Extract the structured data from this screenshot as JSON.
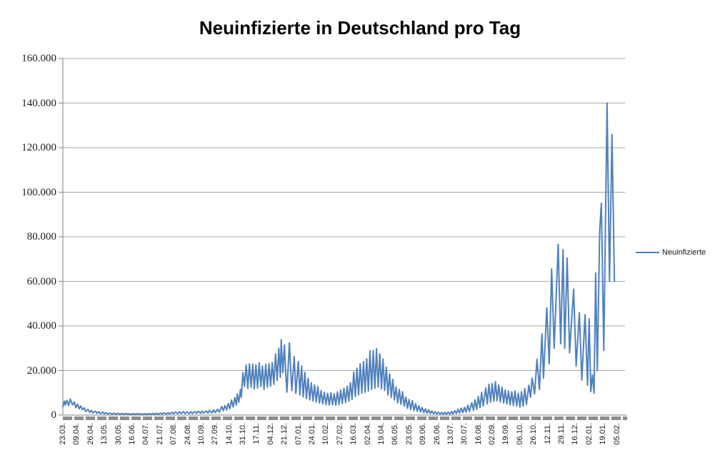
{
  "title": "Neuinfizierte in Deutschland pro Tag",
  "legend": {
    "label": "Neuinfizierte"
  },
  "colors": {
    "line": "#4F81BD",
    "gridline": "#A6A6A6",
    "axis": "#808080",
    "tick_dashes": "#8C8C8C",
    "text": "#000000",
    "background": "#FFFFFF"
  },
  "chart_data": {
    "type": "line",
    "title": "Neuinfizierte in Deutschland pro Tag",
    "series_name": "Neuinfizierte",
    "xlabel": "",
    "ylabel": "",
    "ylim": [
      0,
      160000
    ],
    "y_tick_step": 20000,
    "y_tick_labels": [
      "0",
      "20.000",
      "40.000",
      "60.000",
      "80.000",
      "100.000",
      "120.000",
      "140.000",
      "160.000"
    ],
    "x_tick_labels": [
      "23.03.",
      "09.04.",
      "26.04.",
      "13.05.",
      "30.05.",
      "16.06.",
      "04.07.",
      "21.07.",
      "07.08.",
      "24.08.",
      "10.09.",
      "27.09.",
      "14.10.",
      "31.10.",
      "17.11.",
      "04.12.",
      "21.12.",
      "07.01.",
      "24.01.",
      "10.02.",
      "27.02.",
      "16.03.",
      "02.04.",
      "19.04.",
      "06.05.",
      "23.05.",
      "09.06.",
      "26.06.",
      "13.07.",
      "30.07.",
      "16.08.",
      "02.09.",
      "19.09.",
      "06.10.",
      "26.10.",
      "12.11.",
      "29.11.",
      "16.12.",
      "02.01.",
      "19.01.",
      "05.02."
    ],
    "x_tick_interval_days": 17,
    "x_domain_days": 690,
    "grid": true,
    "legend_position": "right",
    "points": [
      [
        0,
        3800
      ],
      [
        2,
        6300
      ],
      [
        3,
        4500
      ],
      [
        5,
        6600
      ],
      [
        7,
        4300
      ],
      [
        9,
        7200
      ],
      [
        11,
        5300
      ],
      [
        12,
        4600
      ],
      [
        14,
        5900
      ],
      [
        16,
        3300
      ],
      [
        18,
        4900
      ],
      [
        20,
        2800
      ],
      [
        22,
        4100
      ],
      [
        24,
        2400
      ],
      [
        26,
        3300
      ],
      [
        28,
        1600
      ],
      [
        31,
        2500
      ],
      [
        33,
        1200
      ],
      [
        35,
        2100
      ],
      [
        37,
        950
      ],
      [
        40,
        1750
      ],
      [
        42,
        800
      ],
      [
        44,
        1500
      ],
      [
        46,
        650
      ],
      [
        49,
        1350
      ],
      [
        51,
        550
      ],
      [
        53,
        1100
      ],
      [
        55,
        480
      ],
      [
        58,
        950
      ],
      [
        60,
        420
      ],
      [
        63,
        850
      ],
      [
        65,
        380
      ],
      [
        68,
        800
      ],
      [
        70,
        350
      ],
      [
        73,
        750
      ],
      [
        75,
        330
      ],
      [
        78,
        700
      ],
      [
        80,
        310
      ],
      [
        82,
        600
      ],
      [
        84,
        290
      ],
      [
        87,
        650
      ],
      [
        89,
        300
      ],
      [
        92,
        700
      ],
      [
        94,
        320
      ],
      [
        96,
        580
      ],
      [
        99,
        280
      ],
      [
        101,
        620
      ],
      [
        103,
        300
      ],
      [
        106,
        680
      ],
      [
        108,
        330
      ],
      [
        110,
        750
      ],
      [
        113,
        350
      ],
      [
        115,
        800
      ],
      [
        117,
        380
      ],
      [
        120,
        900
      ],
      [
        122,
        420
      ],
      [
        124,
        1000
      ],
      [
        127,
        480
      ],
      [
        129,
        1100
      ],
      [
        131,
        520
      ],
      [
        134,
        1250
      ],
      [
        136,
        580
      ],
      [
        138,
        1400
      ],
      [
        141,
        650
      ],
      [
        143,
        1500
      ],
      [
        145,
        700
      ],
      [
        148,
        1550
      ],
      [
        150,
        720
      ],
      [
        152,
        1450
      ],
      [
        155,
        680
      ],
      [
        157,
        1500
      ],
      [
        159,
        700
      ],
      [
        162,
        1600
      ],
      [
        164,
        750
      ],
      [
        166,
        1700
      ],
      [
        169,
        800
      ],
      [
        171,
        1800
      ],
      [
        173,
        850
      ],
      [
        176,
        1900
      ],
      [
        178,
        900
      ],
      [
        180,
        2100
      ],
      [
        183,
        1000
      ],
      [
        185,
        2300
      ],
      [
        187,
        1100
      ],
      [
        190,
        2600
      ],
      [
        192,
        1300
      ],
      [
        195,
        3800
      ],
      [
        197,
        2000
      ],
      [
        199,
        4300
      ],
      [
        201,
        2300
      ],
      [
        203,
        5200
      ],
      [
        205,
        2900
      ],
      [
        207,
        6800
      ],
      [
        209,
        3600
      ],
      [
        211,
        7800
      ],
      [
        213,
        4400
      ],
      [
        214,
        9500
      ],
      [
        216,
        5800
      ],
      [
        218,
        11500
      ],
      [
        219,
        8000
      ],
      [
        221,
        19000
      ],
      [
        223,
        12900
      ],
      [
        225,
        22500
      ],
      [
        227,
        12000
      ],
      [
        229,
        23000
      ],
      [
        231,
        12500
      ],
      [
        233,
        22800
      ],
      [
        235,
        11800
      ],
      [
        237,
        22500
      ],
      [
        239,
        12200
      ],
      [
        241,
        23400
      ],
      [
        243,
        12800
      ],
      [
        245,
        22000
      ],
      [
        247,
        11500
      ],
      [
        249,
        22800
      ],
      [
        251,
        12500
      ],
      [
        253,
        23000
      ],
      [
        255,
        13000
      ],
      [
        257,
        23500
      ],
      [
        259,
        13800
      ],
      [
        261,
        27500
      ],
      [
        263,
        15500
      ],
      [
        265,
        30000
      ],
      [
        267,
        17000
      ],
      [
        268,
        33900
      ],
      [
        270,
        19000
      ],
      [
        272,
        31500
      ],
      [
        274,
        16000
      ],
      [
        275,
        10300
      ],
      [
        278,
        32400
      ],
      [
        281,
        11000
      ],
      [
        284,
        26200
      ],
      [
        286,
        9700
      ],
      [
        289,
        24100
      ],
      [
        291,
        9000
      ],
      [
        293,
        22000
      ],
      [
        295,
        8200
      ],
      [
        297,
        19200
      ],
      [
        299,
        7400
      ],
      [
        301,
        16500
      ],
      [
        303,
        6800
      ],
      [
        305,
        14500
      ],
      [
        307,
        6300
      ],
      [
        309,
        13500
      ],
      [
        311,
        5900
      ],
      [
        313,
        12800
      ],
      [
        315,
        5400
      ],
      [
        317,
        11000
      ],
      [
        319,
        5000
      ],
      [
        321,
        10200
      ],
      [
        323,
        4700
      ],
      [
        325,
        9800
      ],
      [
        327,
        4500
      ],
      [
        329,
        10000
      ],
      [
        331,
        4600
      ],
      [
        333,
        9600
      ],
      [
        335,
        4400
      ],
      [
        337,
        10400
      ],
      [
        339,
        4800
      ],
      [
        341,
        11200
      ],
      [
        343,
        5200
      ],
      [
        345,
        12000
      ],
      [
        347,
        5600
      ],
      [
        349,
        13000
      ],
      [
        351,
        6200
      ],
      [
        353,
        14500
      ],
      [
        355,
        7000
      ],
      [
        357,
        19300
      ],
      [
        359,
        8300
      ],
      [
        361,
        21000
      ],
      [
        363,
        9000
      ],
      [
        365,
        23000
      ],
      [
        367,
        9800
      ],
      [
        369,
        24000
      ],
      [
        371,
        10200
      ],
      [
        373,
        25200
      ],
      [
        375,
        10800
      ],
      [
        377,
        28900
      ],
      [
        379,
        11500
      ],
      [
        381,
        29000
      ],
      [
        383,
        12000
      ],
      [
        385,
        29800
      ],
      [
        387,
        12500
      ],
      [
        389,
        27500
      ],
      [
        391,
        11800
      ],
      [
        393,
        25200
      ],
      [
        395,
        11000
      ],
      [
        397,
        21500
      ],
      [
        399,
        9000
      ],
      [
        401,
        18500
      ],
      [
        403,
        8000
      ],
      [
        405,
        16000
      ],
      [
        407,
        6800
      ],
      [
        409,
        12600
      ],
      [
        411,
        5500
      ],
      [
        413,
        11500
      ],
      [
        415,
        4800
      ],
      [
        417,
        10500
      ],
      [
        419,
        4000
      ],
      [
        421,
        8100
      ],
      [
        423,
        3000
      ],
      [
        425,
        7000
      ],
      [
        427,
        2400
      ],
      [
        429,
        6500
      ],
      [
        431,
        2000
      ],
      [
        433,
        5100
      ],
      [
        435,
        1700
      ],
      [
        437,
        4200
      ],
      [
        439,
        1400
      ],
      [
        441,
        3400
      ],
      [
        443,
        1100
      ],
      [
        445,
        2800
      ],
      [
        447,
        900
      ],
      [
        449,
        2400
      ],
      [
        451,
        750
      ],
      [
        453,
        1900
      ],
      [
        455,
        600
      ],
      [
        457,
        1500
      ],
      [
        459,
        500
      ],
      [
        461,
        1300
      ],
      [
        463,
        440
      ],
      [
        465,
        1200
      ],
      [
        467,
        420
      ],
      [
        469,
        1250
      ],
      [
        471,
        440
      ],
      [
        473,
        1300
      ],
      [
        475,
        460
      ],
      [
        477,
        1600
      ],
      [
        479,
        560
      ],
      [
        481,
        2000
      ],
      [
        483,
        700
      ],
      [
        485,
        2600
      ],
      [
        487,
        900
      ],
      [
        489,
        3100
      ],
      [
        491,
        1100
      ],
      [
        493,
        3500
      ],
      [
        495,
        1300
      ],
      [
        497,
        4400
      ],
      [
        499,
        1700
      ],
      [
        502,
        5500
      ],
      [
        504,
        2100
      ],
      [
        506,
        6800
      ],
      [
        508,
        2600
      ],
      [
        510,
        8300
      ],
      [
        512,
        3300
      ],
      [
        514,
        10200
      ],
      [
        516,
        4100
      ],
      [
        519,
        12200
      ],
      [
        521,
        5000
      ],
      [
        523,
        13800
      ],
      [
        525,
        5800
      ],
      [
        527,
        14200
      ],
      [
        529,
        6200
      ],
      [
        531,
        15000
      ],
      [
        533,
        6400
      ],
      [
        535,
        13500
      ],
      [
        537,
        5900
      ],
      [
        539,
        12500
      ],
      [
        541,
        5400
      ],
      [
        543,
        11300
      ],
      [
        545,
        5000
      ],
      [
        547,
        10800
      ],
      [
        549,
        4600
      ],
      [
        551,
        10500
      ],
      [
        553,
        4300
      ],
      [
        555,
        10800
      ],
      [
        557,
        4100
      ],
      [
        559,
        9800
      ],
      [
        561,
        3600
      ],
      [
        563,
        10500
      ],
      [
        565,
        4000
      ],
      [
        567,
        11800
      ],
      [
        569,
        4700
      ],
      [
        572,
        13400
      ],
      [
        574,
        8000
      ],
      [
        576,
        16600
      ],
      [
        579,
        9500
      ],
      [
        582,
        25000
      ],
      [
        585,
        11500
      ],
      [
        588,
        36400
      ],
      [
        590,
        16600
      ],
      [
        594,
        48100
      ],
      [
        597,
        23000
      ],
      [
        600,
        65600
      ],
      [
        603,
        30000
      ],
      [
        608,
        76600
      ],
      [
        611,
        32000
      ],
      [
        614,
        74200
      ],
      [
        616,
        30000
      ],
      [
        619,
        70500
      ],
      [
        622,
        28000
      ],
      [
        627,
        56500
      ],
      [
        630,
        22000
      ],
      [
        634,
        46000
      ],
      [
        637,
        15700
      ],
      [
        641,
        45000
      ],
      [
        644,
        13400
      ],
      [
        646,
        43200
      ],
      [
        648,
        10500
      ],
      [
        650,
        18000
      ],
      [
        652,
        9800
      ],
      [
        654,
        63700
      ],
      [
        656,
        20000
      ],
      [
        659,
        83000
      ],
      [
        661,
        95000
      ],
      [
        664,
        29000
      ],
      [
        668,
        140000
      ],
      [
        671,
        60000
      ],
      [
        674,
        126000
      ],
      [
        677,
        60000
      ]
    ]
  }
}
